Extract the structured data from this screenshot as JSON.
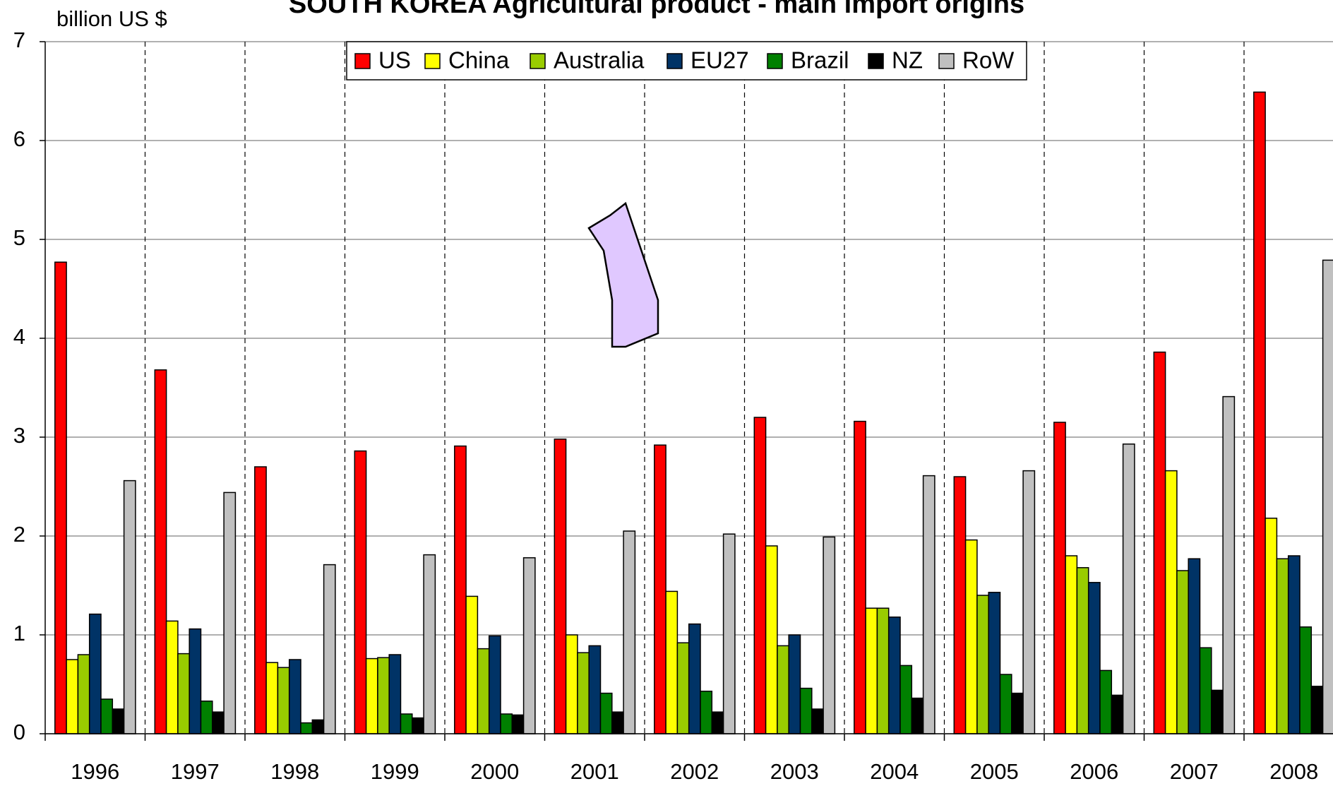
{
  "chart_data": {
    "type": "bar",
    "title": "SOUTH KOREA Agricultural product - main import origins",
    "y_label": "billion US $",
    "categories": [
      "1996",
      "1997",
      "1998",
      "1999",
      "2000",
      "2001",
      "2002",
      "2003",
      "2004",
      "2005",
      "2006",
      "2007",
      "2008"
    ],
    "series": [
      {
        "name": "US",
        "color": "#ff0000",
        "values": [
          4.77,
          3.68,
          2.7,
          2.86,
          2.91,
          2.98,
          2.92,
          3.2,
          3.16,
          2.6,
          3.15,
          3.86,
          6.49
        ]
      },
      {
        "name": "China",
        "color": "#ffff00",
        "values": [
          0.75,
          1.14,
          0.72,
          0.76,
          1.39,
          1.0,
          1.44,
          1.9,
          1.27,
          1.96,
          1.8,
          2.66,
          2.18
        ]
      },
      {
        "name": "Australia",
        "color": "#99cc00",
        "values": [
          0.8,
          0.81,
          0.67,
          0.77,
          0.86,
          0.82,
          0.92,
          0.89,
          1.27,
          1.4,
          1.68,
          1.65,
          1.77
        ]
      },
      {
        "name": "EU27",
        "color": "#003366",
        "values": [
          1.21,
          1.06,
          0.75,
          0.8,
          0.99,
          0.89,
          1.11,
          1.0,
          1.18,
          1.43,
          1.53,
          1.77,
          1.8
        ]
      },
      {
        "name": "Brazil",
        "color": "#008000",
        "values": [
          0.35,
          0.33,
          0.11,
          0.2,
          0.2,
          0.41,
          0.43,
          0.46,
          0.69,
          0.6,
          0.64,
          0.87,
          1.08
        ]
      },
      {
        "name": "NZ",
        "color": "#000000",
        "values": [
          0.25,
          0.22,
          0.14,
          0.16,
          0.19,
          0.22,
          0.22,
          0.25,
          0.36,
          0.41,
          0.39,
          0.44,
          0.48
        ]
      },
      {
        "name": "RoW",
        "color": "#c0c0c0",
        "values": [
          2.56,
          2.44,
          1.71,
          1.81,
          1.78,
          2.05,
          2.02,
          1.99,
          2.61,
          2.66,
          2.93,
          3.41,
          4.79
        ]
      }
    ],
    "ylim": [
      0,
      7
    ],
    "yticks": [
      0,
      1,
      2,
      3,
      4,
      5,
      6,
      7
    ],
    "grid": true,
    "legend": "top"
  }
}
